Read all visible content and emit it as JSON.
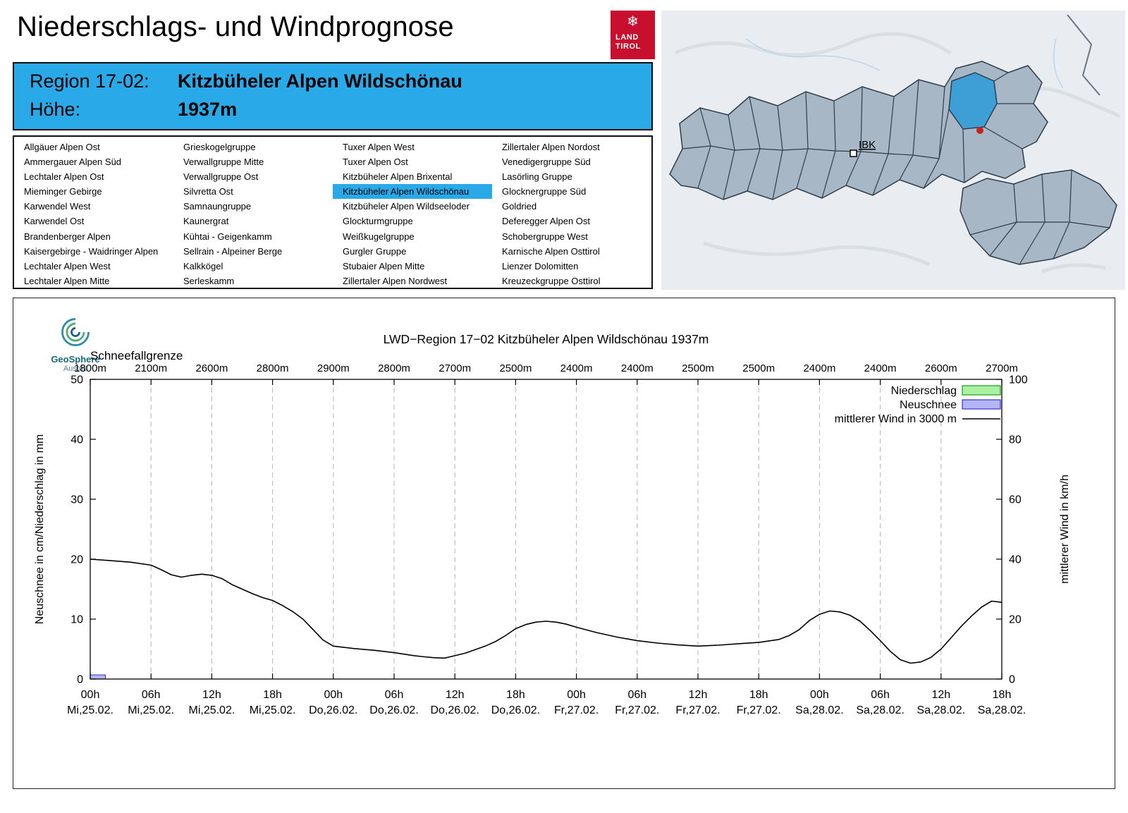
{
  "page": {
    "title": "Niederschlags- und Windprognose"
  },
  "logo": {
    "line1": "LAND",
    "line2": "TIROL",
    "emblem": "❄",
    "bg": "#c8102e"
  },
  "banner": {
    "bg": "#29a9e8",
    "region_label": "Region 17-02:",
    "region_value": "Kitzbüheler Alpen Wildschönau",
    "altitude_label": "Höhe:",
    "altitude_value": "1937m"
  },
  "map": {
    "ibk_label": "IBK",
    "highlight_color": "#3d9fd6"
  },
  "region_list": {
    "highlight_color": "#29a9e8",
    "selected": "Kitzbüheler Alpen Wildschönau",
    "columns": [
      [
        "Allgäuer Alpen Ost",
        "Ammergauer Alpen Süd",
        "Lechtaler Alpen Ost",
        "Mieminger Gebirge",
        "Karwendel West",
        "Karwendel Ost",
        "Brandenberger Alpen",
        "Kaisergebirge - Waidringer Alpen",
        "Lechtaler Alpen West",
        "Lechtaler Alpen Mitte"
      ],
      [
        "Grieskogelgruppe",
        "Verwallgruppe Mitte",
        "Verwallgruppe Ost",
        "Silvretta Ost",
        "Samnaungruppe",
        "Kaunergrat",
        "Kühtai - Geigenkamm",
        "Sellrain - Alpeiner Berge",
        "Kalkkögel",
        "Serleskamm"
      ],
      [
        "Tuxer Alpen West",
        "Tuxer Alpen Ost",
        "Kitzbüheler Alpen Brixental",
        "Kitzbüheler Alpen Wildschönau",
        "Kitzbüheler Alpen Wildseeloder",
        "Glockturmgruppe",
        "Weißkugelgruppe",
        "Gurgler Gruppe",
        "Stubaier Alpen Mitte",
        "Zillertaler Alpen Nordwest"
      ],
      [
        "Zillertaler Alpen Nordost",
        "Venedigergruppe Süd",
        "Lasörling Gruppe",
        "Glocknergruppe Süd",
        "Goldried",
        "Deferegger Alpen Ost",
        "Schobergruppe West",
        "Karnische Alpen Osttirol",
        "Lienzer Dolomitten",
        "Kreuzeckgruppe Osttirol"
      ]
    ]
  },
  "branding": {
    "geosphere_line1": "GeoSphere",
    "geosphere_line2": "Austria"
  },
  "chart_data": {
    "type": "line",
    "title": "LWD−Region 17−02 Kitzbüheler Alpen Wildschönau 1937m",
    "snowline_label": "Schneefallgrenze",
    "snowline_values": [
      "1800m",
      "2100m",
      "2600m",
      "2800m",
      "2900m",
      "2800m",
      "2700m",
      "2500m",
      "2400m",
      "2400m",
      "2500m",
      "2500m",
      "2400m",
      "2400m",
      "2600m",
      "2700m"
    ],
    "xlabel": "",
    "ylabel_left": "Neuschnee in cm/Niederschlag in mm",
    "ylabel_right": "mittlerer Wind in km/h",
    "ylim_left": [
      0,
      50
    ],
    "ylim_right": [
      0,
      100
    ],
    "yticks_left": [
      0,
      10,
      20,
      30,
      40,
      50
    ],
    "yticks_right": [
      0,
      20,
      40,
      60,
      80,
      100
    ],
    "x_hours_range": [
      0,
      90
    ],
    "x_tick_step_hours": 6,
    "x_ticks": [
      {
        "time": "00h",
        "date": "Mi,25.02."
      },
      {
        "time": "06h",
        "date": "Mi,25.02."
      },
      {
        "time": "12h",
        "date": "Mi,25.02."
      },
      {
        "time": "18h",
        "date": "Mi,25.02."
      },
      {
        "time": "00h",
        "date": "Do,26.02."
      },
      {
        "time": "06h",
        "date": "Do,26.02."
      },
      {
        "time": "12h",
        "date": "Do,26.02."
      },
      {
        "time": "18h",
        "date": "Do,26.02."
      },
      {
        "time": "00h",
        "date": "Fr,27.02."
      },
      {
        "time": "06h",
        "date": "Fr,27.02."
      },
      {
        "time": "12h",
        "date": "Fr,27.02."
      },
      {
        "time": "18h",
        "date": "Fr,27.02."
      },
      {
        "time": "00h",
        "date": "Sa,28.02."
      },
      {
        "time": "06h",
        "date": "Sa,28.02."
      },
      {
        "time": "12h",
        "date": "Sa,28.02."
      },
      {
        "time": "18h",
        "date": "Sa,28.02."
      }
    ],
    "legend": [
      {
        "label": "Niederschlag",
        "type": "box",
        "fill": "#aaf0a0",
        "stroke": "#18a018"
      },
      {
        "label": "Neuschnee",
        "type": "box",
        "fill": "#b4b4f8",
        "stroke": "#3434d2"
      },
      {
        "label": "mittlerer Wind in 3000 m",
        "type": "line",
        "stroke": "#000000"
      }
    ],
    "bars": {
      "niederschlag": [],
      "neuschnee": [
        {
          "x": 0,
          "w": 1.5,
          "h": 0.7
        }
      ]
    },
    "wind_series": {
      "name": "mittlerer Wind in 3000 m",
      "axis": "right",
      "units": "km/h",
      "points": [
        [
          0,
          40
        ],
        [
          2,
          39.5
        ],
        [
          4,
          39
        ],
        [
          6,
          38
        ],
        [
          7,
          36.5
        ],
        [
          8,
          34.8
        ],
        [
          9,
          34
        ],
        [
          10,
          34.6
        ],
        [
          11,
          35
        ],
        [
          12,
          34.6
        ],
        [
          13,
          33.5
        ],
        [
          14,
          31.5
        ],
        [
          15,
          30
        ],
        [
          16,
          28.5
        ],
        [
          17,
          27.2
        ],
        [
          18,
          26.2
        ],
        [
          19,
          24.5
        ],
        [
          20,
          22.5
        ],
        [
          21,
          20
        ],
        [
          22,
          16.5
        ],
        [
          23,
          13
        ],
        [
          24,
          11
        ],
        [
          26,
          10.2
        ],
        [
          28,
          9.6
        ],
        [
          30,
          8.8
        ],
        [
          32,
          7.8
        ],
        [
          33,
          7.4
        ],
        [
          34,
          7.1
        ],
        [
          35,
          7
        ],
        [
          36,
          7.8
        ],
        [
          37,
          8.6
        ],
        [
          38,
          9.8
        ],
        [
          39,
          11
        ],
        [
          40,
          12.5
        ],
        [
          41,
          14.5
        ],
        [
          42,
          16.8
        ],
        [
          43,
          18.2
        ],
        [
          44,
          19
        ],
        [
          45,
          19.3
        ],
        [
          46,
          19
        ],
        [
          47,
          18.3
        ],
        [
          48,
          17.3
        ],
        [
          50,
          15.5
        ],
        [
          52,
          14
        ],
        [
          54,
          12.8
        ],
        [
          56,
          12
        ],
        [
          58,
          11.4
        ],
        [
          60,
          11
        ],
        [
          62,
          11.3
        ],
        [
          64,
          11.8
        ],
        [
          66,
          12.2
        ],
        [
          68,
          13.2
        ],
        [
          69,
          14.5
        ],
        [
          70,
          16.5
        ],
        [
          71,
          19.5
        ],
        [
          72,
          21.6
        ],
        [
          73,
          22.7
        ],
        [
          74,
          22.4
        ],
        [
          75,
          21.3
        ],
        [
          76,
          19.3
        ],
        [
          77,
          16.2
        ],
        [
          78,
          12.8
        ],
        [
          79,
          9.2
        ],
        [
          80,
          6.4
        ],
        [
          81,
          5.3
        ],
        [
          82,
          5.7
        ],
        [
          83,
          7.2
        ],
        [
          84,
          10
        ],
        [
          85,
          13.8
        ],
        [
          86,
          17.6
        ],
        [
          87,
          21
        ],
        [
          88,
          24
        ],
        [
          89,
          26
        ],
        [
          90,
          25.6
        ]
      ]
    }
  }
}
